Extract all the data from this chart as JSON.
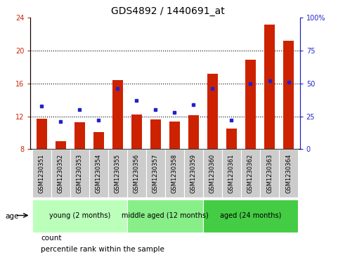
{
  "title": "GDS4892 / 1440691_at",
  "samples": [
    "GSM1230351",
    "GSM1230352",
    "GSM1230353",
    "GSM1230354",
    "GSM1230355",
    "GSM1230356",
    "GSM1230357",
    "GSM1230358",
    "GSM1230359",
    "GSM1230360",
    "GSM1230361",
    "GSM1230362",
    "GSM1230363",
    "GSM1230364"
  ],
  "counts": [
    11.7,
    9.0,
    11.3,
    10.1,
    16.4,
    12.2,
    11.6,
    11.4,
    12.1,
    17.2,
    10.5,
    18.9,
    23.2,
    21.2
  ],
  "percentiles": [
    33,
    21,
    30,
    22,
    46,
    37,
    30,
    28,
    34,
    46,
    22,
    50,
    52,
    51
  ],
  "ylim_left": [
    8,
    24
  ],
  "ylim_right": [
    0,
    100
  ],
  "yticks_left": [
    8,
    12,
    16,
    20,
    24
  ],
  "yticks_right": [
    0,
    25,
    50,
    75,
    100
  ],
  "ytick_right_labels": [
    "0",
    "25",
    "50",
    "75",
    "100%"
  ],
  "bar_color": "#cc2200",
  "dot_color": "#2222cc",
  "groups": [
    {
      "label": "young (2 months)",
      "start": 0,
      "end": 5,
      "color": "#bbffbb"
    },
    {
      "label": "middle aged (12 months)",
      "start": 5,
      "end": 9,
      "color": "#88ee88"
    },
    {
      "label": "aged (24 months)",
      "start": 9,
      "end": 14,
      "color": "#44cc44"
    }
  ],
  "group_box_color": "#cccccc",
  "legend_count_color": "#cc2200",
  "legend_dot_color": "#2222cc",
  "xlabel_age": "age",
  "grid_color": "#000000",
  "title_fontsize": 10,
  "tick_fontsize": 7,
  "sample_fontsize": 6,
  "group_fontsize": 7,
  "legend_fontsize": 7.5,
  "axis_label_color_left": "#cc2200",
  "axis_label_color_right": "#2222cc",
  "grid_yticks": [
    12,
    16,
    20
  ]
}
